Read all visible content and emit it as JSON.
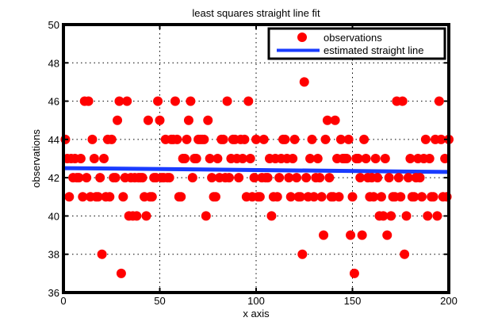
{
  "chart_data": {
    "type": "scatter",
    "title": "least squares straight line fit",
    "xlabel": "x axis",
    "ylabel": "observations",
    "xlim": [
      0,
      200
    ],
    "ylim": [
      36,
      50
    ],
    "xticks": [
      0,
      50,
      100,
      150,
      200
    ],
    "yticks": [
      36,
      38,
      40,
      42,
      44,
      46,
      48,
      50
    ],
    "grid": true,
    "legend": {
      "placement": "top-right",
      "entries": [
        "observations",
        "estimated straight line"
      ]
    },
    "colors": {
      "observations": "#ff0000",
      "line": "#1a3cff"
    },
    "series": [
      {
        "name": "observations",
        "type": "scatter",
        "x": [
          1,
          2,
          3,
          4,
          5,
          6,
          7,
          8,
          9,
          10,
          11,
          12,
          13,
          14,
          15,
          16,
          17,
          18,
          19,
          20,
          21,
          22,
          23,
          24,
          25,
          26,
          27,
          28,
          29,
          30,
          31,
          32,
          33,
          34,
          35,
          36,
          37,
          38,
          39,
          40,
          41,
          42,
          43,
          44,
          45,
          46,
          47,
          48,
          49,
          50,
          51,
          52,
          53,
          54,
          55,
          56,
          57,
          58,
          59,
          60,
          61,
          62,
          63,
          64,
          65,
          66,
          67,
          68,
          69,
          70,
          71,
          72,
          73,
          74,
          75,
          76,
          77,
          78,
          79,
          80,
          81,
          82,
          83,
          84,
          85,
          86,
          87,
          88,
          89,
          90,
          91,
          92,
          93,
          94,
          95,
          96,
          97,
          98,
          99,
          100,
          101,
          102,
          103,
          104,
          105,
          106,
          107,
          108,
          109,
          110,
          111,
          112,
          113,
          114,
          115,
          116,
          117,
          118,
          119,
          120,
          121,
          122,
          123,
          124,
          125,
          126,
          127,
          128,
          129,
          130,
          131,
          132,
          133,
          134,
          135,
          136,
          137,
          138,
          139,
          140,
          141,
          142,
          143,
          144,
          145,
          146,
          147,
          148,
          149,
          150,
          151,
          152,
          153,
          154,
          155,
          156,
          157,
          158,
          159,
          160,
          161,
          162,
          163,
          164,
          165,
          166,
          167,
          168,
          169,
          170,
          171,
          172,
          173,
          174,
          175,
          176,
          177,
          178,
          179,
          180,
          181,
          182,
          183,
          184,
          185,
          186,
          187,
          188,
          189,
          190,
          191,
          192,
          193,
          194,
          195,
          196,
          197,
          198,
          199,
          200
        ],
        "y": [
          44,
          43,
          41,
          43,
          42,
          43,
          42,
          42,
          43,
          41,
          46,
          42,
          46,
          41,
          44,
          43,
          41,
          41,
          42,
          38,
          43,
          41,
          44,
          41,
          44,
          42,
          42,
          45,
          46,
          37,
          41,
          42,
          46,
          40,
          42,
          40,
          42,
          40,
          42,
          42,
          42,
          41,
          40,
          45,
          41,
          41,
          42,
          42,
          46,
          45,
          42,
          42,
          44,
          42,
          42,
          44,
          44,
          46,
          44,
          41,
          41,
          43,
          43,
          44,
          45,
          46,
          42,
          43,
          43,
          44,
          44,
          44,
          44,
          40,
          45,
          43,
          42,
          41,
          41,
          43,
          42,
          44,
          44,
          42,
          46,
          42,
          43,
          44,
          44,
          43,
          42,
          44,
          43,
          44,
          41,
          46,
          43,
          41,
          42,
          44,
          41,
          41,
          42,
          44,
          42,
          42,
          43,
          40,
          41,
          43,
          41,
          42,
          43,
          44,
          44,
          43,
          42,
          41,
          43,
          44,
          42,
          41,
          41,
          38,
          47,
          42,
          41,
          43,
          44,
          41,
          42,
          43,
          42,
          41,
          39,
          44,
          45,
          42,
          41,
          41,
          45,
          43,
          41,
          44,
          43,
          43,
          43,
          44,
          39,
          41,
          37,
          43,
          43,
          42,
          39,
          44,
          43,
          42,
          41,
          42,
          41,
          43,
          42,
          40,
          41,
          40,
          43,
          39,
          42,
          40,
          41,
          41,
          46,
          42,
          41,
          46,
          38,
          40,
          42,
          43,
          41,
          41,
          42,
          43,
          42,
          41,
          43,
          44,
          40,
          43,
          41,
          41,
          44,
          40,
          46,
          44,
          41,
          43,
          41,
          44
        ]
      },
      {
        "name": "estimated straight line",
        "type": "line",
        "x": [
          0,
          200
        ],
        "y": [
          42.5,
          42.3
        ]
      }
    ]
  }
}
